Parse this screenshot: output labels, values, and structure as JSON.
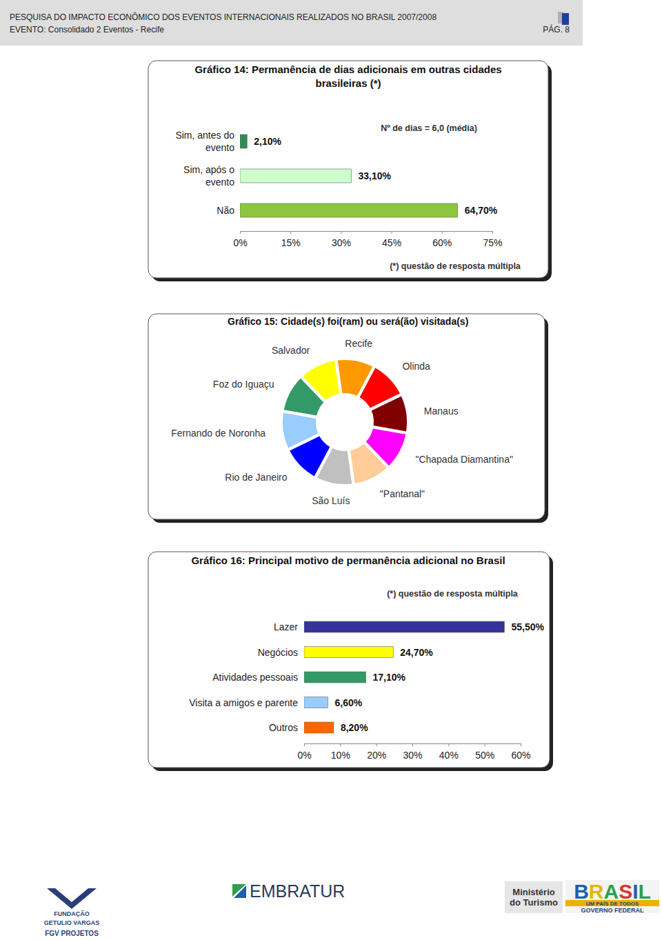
{
  "header": {
    "title": "PESQUISA DO IMPACTO ECONÔMICO DOS EVENTOS INTERNACIONAIS REALIZADOS NO BRASIL 2007/2008",
    "event": "EVENTO: Consolidado 2 Eventos - Recife",
    "page": "PÁG. 8"
  },
  "chart_data": [
    {
      "type": "bar",
      "title": "Gráfico 14: Permanência de dias adicionais em outras cidades brasileiras (*)",
      "orientation": "horizontal",
      "categories": [
        "Sim, antes do evento",
        "Sim, após o evento",
        "Não"
      ],
      "values": [
        2.1,
        33.1,
        64.7
      ],
      "value_labels": [
        "2,10%",
        "33,10%",
        "64,70%"
      ],
      "data_labels": true,
      "colors": [
        "#2e8b57",
        "#ccffcc",
        "#8cc63f"
      ],
      "xlim": [
        0,
        75
      ],
      "xticks": [
        {
          "value": 0,
          "label": "0%"
        },
        {
          "value": 15,
          "label": "15%"
        },
        {
          "value": 30,
          "label": "30%"
        },
        {
          "value": 45,
          "label": "45%"
        },
        {
          "value": 60,
          "label": "60%"
        },
        {
          "value": 75,
          "label": "75%"
        }
      ],
      "grid": false,
      "annotations": [
        "Nº de dias = 6,0 (média)",
        "(*) questão de resposta múltipla"
      ]
    },
    {
      "type": "donut",
      "title": "Gráfico 15: Cidade(s) foi(ram) ou será(ão) visitada(s)",
      "categories": [
        "Recife",
        "Olinda",
        "Manaus",
        "\"Chapada Diamantina\"",
        "\"Pantanal\"",
        "São Luís",
        "Rio de Janeiro",
        "Fernando de Noronha",
        "Foz do Iguaçu",
        "Salvador"
      ],
      "values": [
        10,
        10,
        10,
        10,
        10,
        10,
        10,
        10,
        10,
        10
      ],
      "colors": [
        "#ff9900",
        "#ff0000",
        "#800000",
        "#ff00ff",
        "#ffcc99",
        "#c0c0c0",
        "#0000ff",
        "#99ccff",
        "#339966",
        "#ffff00"
      ],
      "data_labels": false
    },
    {
      "type": "bar",
      "title": "Gráfico 16: Principal motivo de permanência adicional no Brasil",
      "orientation": "horizontal",
      "categories": [
        "Lazer",
        "Negócios",
        "Atividades pessoais",
        "Visita a amigos e parente",
        "Outros"
      ],
      "values": [
        55.5,
        24.7,
        17.1,
        6.6,
        8.2
      ],
      "value_labels": [
        "55,50%",
        "24,70%",
        "17,10%",
        "6,60%",
        "8,20%"
      ],
      "data_labels": true,
      "colors": [
        "#333399",
        "#ffff00",
        "#339966",
        "#99ccff",
        "#ff6600"
      ],
      "xlim": [
        0,
        60
      ],
      "xticks": [
        {
          "value": 0,
          "label": "0%"
        },
        {
          "value": 10,
          "label": "10%"
        },
        {
          "value": 20,
          "label": "20%"
        },
        {
          "value": 30,
          "label": "30%"
        },
        {
          "value": 40,
          "label": "40%"
        },
        {
          "value": 50,
          "label": "50%"
        },
        {
          "value": 60,
          "label": "60%"
        }
      ],
      "grid": false,
      "annotations": [
        "(*) questão de resposta múltipla"
      ]
    }
  ],
  "footer": {
    "logos": [
      [
        "FUNDAÇÃO",
        "GETULIO VARGAS",
        "FGV PROJETOS"
      ],
      [
        "EMBRATUR"
      ],
      [
        "Ministério",
        "do Turismo"
      ],
      [
        "BRASIL",
        "UM PAÍS DE TODOS",
        "GOVERNO FEDERAL"
      ]
    ]
  }
}
